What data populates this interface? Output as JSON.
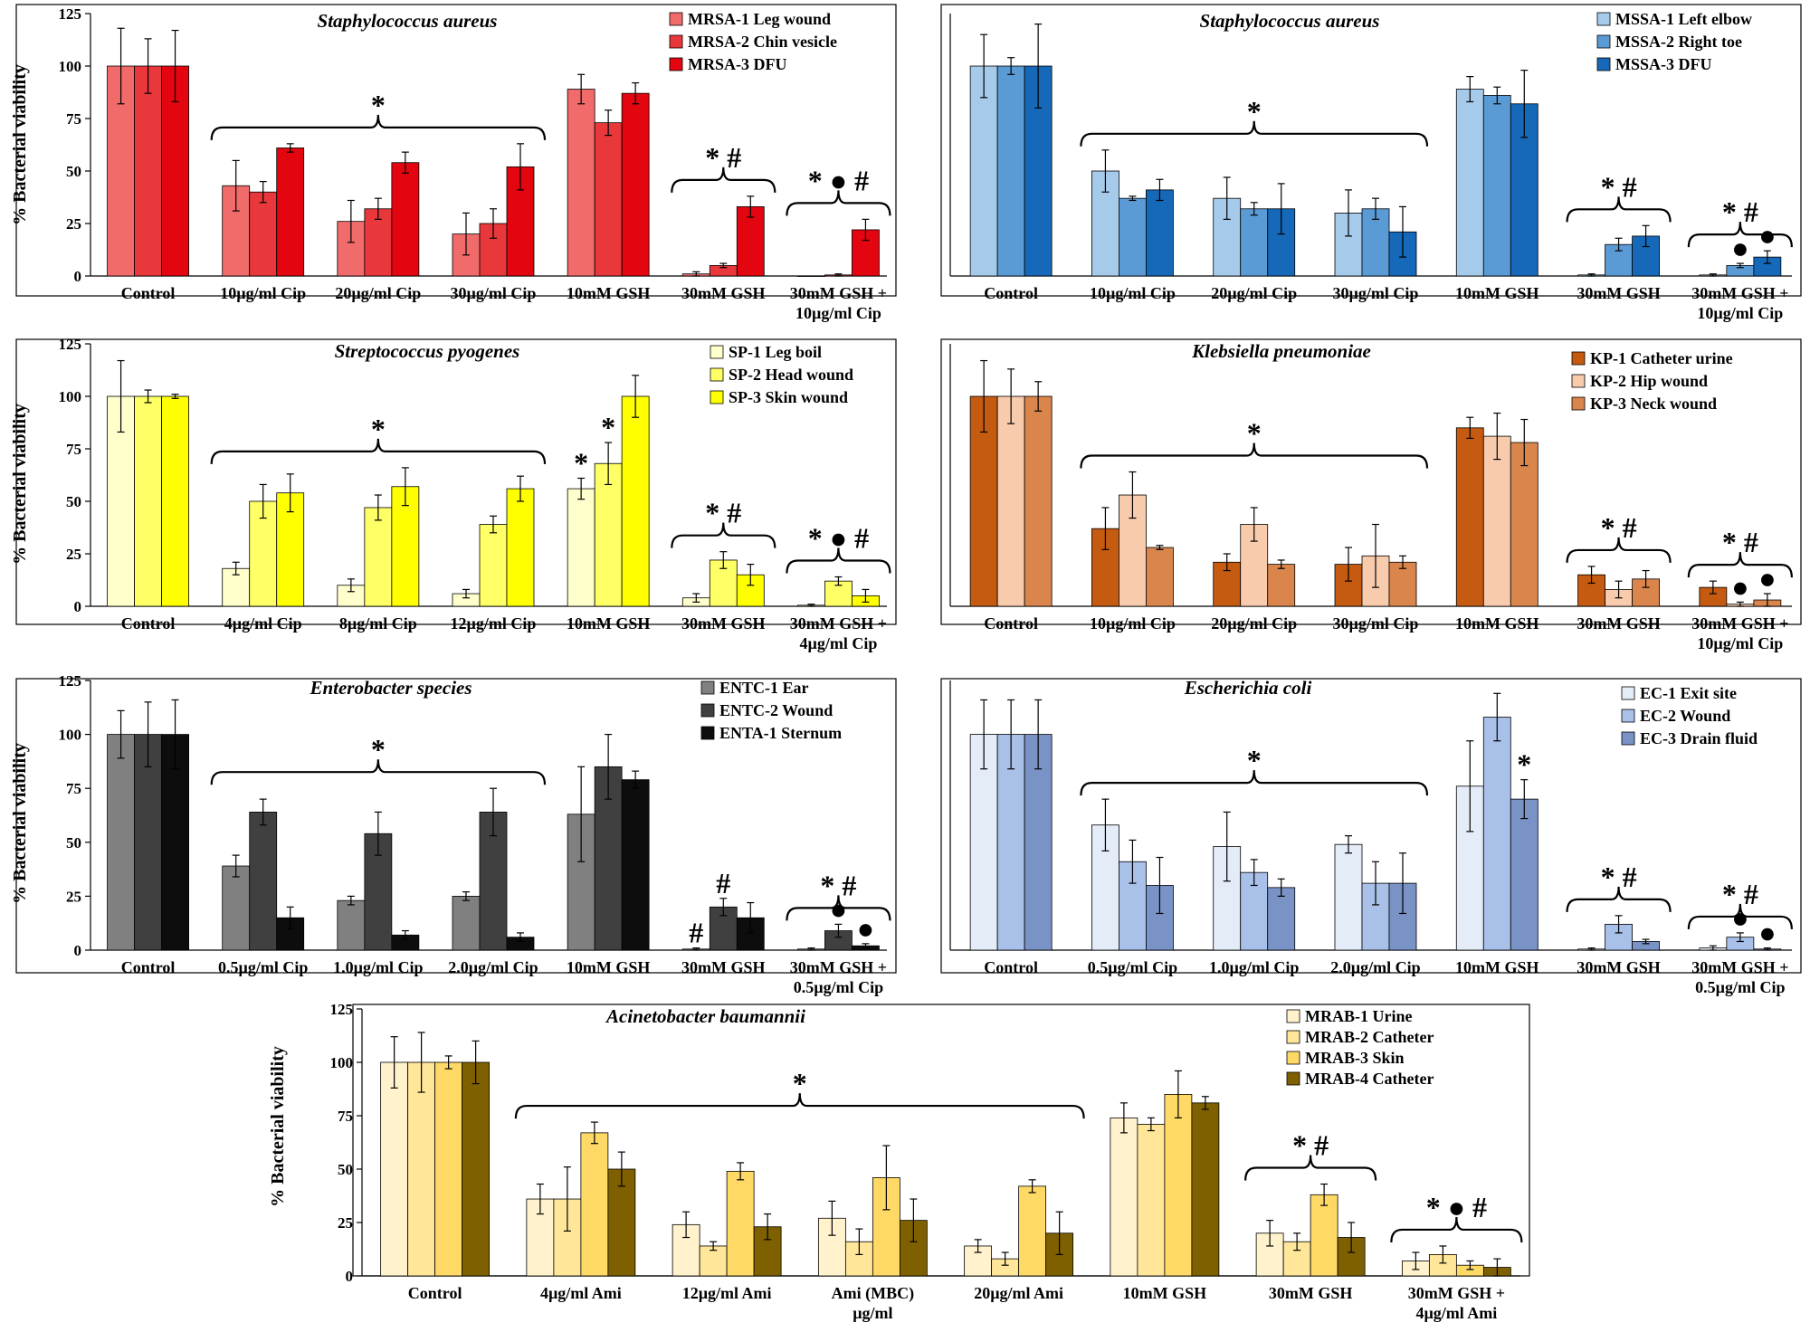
{
  "figure": {
    "ylabel": "% Bacterial viability"
  },
  "chart_data": [
    {
      "type": "bar",
      "title": "Staphylococcus aureus",
      "ylabel": "% Bacterial viability",
      "ylim": [
        0,
        125
      ],
      "yticks": [
        "0",
        "25",
        "50",
        "75",
        "100",
        "125"
      ],
      "categories": [
        [
          "Control"
        ],
        [
          "10µg/ml Cip"
        ],
        [
          "20µg/ml Cip"
        ],
        [
          "30µg/ml Cip"
        ],
        [
          "10mM GSH"
        ],
        [
          "30mM GSH"
        ],
        [
          "30mM GSH +",
          "10µg/ml Cip"
        ]
      ],
      "series": [
        {
          "name": "MRSA-1 Leg wound",
          "color": "#f26b6b",
          "values": [
            100,
            43,
            26,
            20,
            89,
            1,
            0
          ],
          "errors": [
            18,
            12,
            10,
            10,
            7,
            1,
            0
          ]
        },
        {
          "name": "MRSA-2 Chin vesicle",
          "color": "#e8383b",
          "values": [
            100,
            40,
            32,
            25,
            73,
            5,
            0.5
          ],
          "errors": [
            13,
            5,
            5,
            7,
            6,
            1,
            0.5
          ]
        },
        {
          "name": "MRSA-3 DFU",
          "color": "#e3050f",
          "values": [
            100,
            61,
            54,
            52,
            87,
            33,
            22
          ],
          "errors": [
            17,
            2,
            5,
            11,
            5,
            5,
            5
          ]
        }
      ],
      "annotations": [
        {
          "text": "*",
          "brace": [
            1,
            3
          ]
        },
        {
          "text": "*  #",
          "brace": [
            5,
            5
          ]
        },
        {
          "text": "*  ●  #",
          "brace": [
            6,
            6
          ]
        }
      ]
    },
    {
      "type": "bar",
      "title": "Staphylococcus aureus",
      "ylabel": "",
      "ylim": [
        0,
        125
      ],
      "yticks": [],
      "categories": [
        [
          "Control"
        ],
        [
          "10µg/ml Cip"
        ],
        [
          "20µg/ml Cip"
        ],
        [
          "30µg/ml Cip"
        ],
        [
          "10mM GSH"
        ],
        [
          "30mM GSH"
        ],
        [
          "30mM GSH +",
          "10µg/ml Cip"
        ]
      ],
      "series": [
        {
          "name": "MSSA-1 Left elbow",
          "color": "#a6cbea",
          "values": [
            100,
            50,
            37,
            30,
            89,
            0.5,
            0.5
          ],
          "errors": [
            15,
            10,
            10,
            11,
            6,
            0.5,
            0.5
          ]
        },
        {
          "name": "MSSA-2 Right toe",
          "color": "#5b9bd5",
          "values": [
            100,
            37,
            32,
            32,
            86,
            15,
            5
          ],
          "errors": [
            4,
            1,
            3,
            5,
            4,
            3,
            1
          ]
        },
        {
          "name": "MSSA-3 DFU",
          "color": "#1668b8",
          "values": [
            100,
            41,
            32,
            21,
            82,
            19,
            9
          ],
          "errors": [
            20,
            5,
            12,
            12,
            16,
            5,
            3
          ]
        }
      ],
      "annotations": [
        {
          "text": "*",
          "brace": [
            1,
            3
          ]
        },
        {
          "text": "*  #",
          "brace": [
            5,
            5
          ]
        },
        {
          "text": "*  #",
          "brace": [
            6,
            6
          ]
        },
        {
          "text": "●",
          "at": [
            6,
            1
          ]
        },
        {
          "text": "●",
          "at": [
            6,
            2
          ]
        }
      ]
    },
    {
      "type": "bar",
      "title": "Streptococcus pyogenes",
      "ylabel": "% Bacterial viability",
      "ylim": [
        0,
        125
      ],
      "yticks": [
        "0",
        "25",
        "50",
        "75",
        "100",
        "125"
      ],
      "categories": [
        [
          "Control"
        ],
        [
          "4µg/ml Cip"
        ],
        [
          "8µg/ml Cip"
        ],
        [
          "12µg/ml Cip"
        ],
        [
          "10mM GSH"
        ],
        [
          "30mM GSH"
        ],
        [
          "30mM GSH +",
          "4µg/ml Cip"
        ]
      ],
      "series": [
        {
          "name": "SP-1 Leg boil",
          "color": "#ffffcc",
          "values": [
            100,
            18,
            10,
            6,
            56,
            4,
            0.5
          ],
          "errors": [
            17,
            3,
            3,
            2,
            5,
            2,
            0.5
          ]
        },
        {
          "name": "SP-2 Head wound",
          "color": "#ffff66",
          "values": [
            100,
            50,
            47,
            39,
            68,
            22,
            12
          ],
          "errors": [
            3,
            8,
            6,
            4,
            10,
            4,
            2
          ]
        },
        {
          "name": "SP-3 Skin wound",
          "color": "#ffff00",
          "values": [
            100,
            54,
            57,
            56,
            100,
            15,
            5
          ],
          "errors": [
            1,
            9,
            9,
            6,
            10,
            5,
            3
          ]
        }
      ],
      "annotations": [
        {
          "text": "*",
          "brace": [
            1,
            3
          ]
        },
        {
          "text": "*",
          "at": [
            4,
            0
          ]
        },
        {
          "text": "*",
          "at": [
            4,
            1
          ]
        },
        {
          "text": "*  #",
          "brace": [
            5,
            5
          ]
        },
        {
          "text": "*  ●  #",
          "brace": [
            6,
            6
          ]
        }
      ]
    },
    {
      "type": "bar",
      "title": "Klebsiella pneumoniae",
      "ylabel": "",
      "ylim": [
        0,
        125
      ],
      "yticks": [],
      "categories": [
        [
          "Control"
        ],
        [
          "10µg/ml Cip"
        ],
        [
          "20µg/ml Cip"
        ],
        [
          "30µg/ml Cip"
        ],
        [
          "10mM GSH"
        ],
        [
          "30mM GSH"
        ],
        [
          "30mM GSH +",
          "10µg/ml Cip"
        ]
      ],
      "series": [
        {
          "name": "KP-1 Catheter urine",
          "color": "#c55a11",
          "values": [
            100,
            37,
            21,
            20,
            85,
            15,
            9
          ],
          "errors": [
            17,
            10,
            4,
            8,
            5,
            4,
            3
          ]
        },
        {
          "name": "KP-2 Hip wound",
          "color": "#f8cbad",
          "values": [
            100,
            53,
            39,
            24,
            81,
            8,
            1
          ],
          "errors": [
            13,
            11,
            8,
            15,
            11,
            4,
            1
          ]
        },
        {
          "name": "KP-3 Neck wound",
          "color": "#d9854c",
          "values": [
            100,
            28,
            20,
            21,
            78,
            13,
            3
          ],
          "errors": [
            7,
            1,
            2,
            3,
            11,
            4,
            3
          ]
        }
      ],
      "annotations": [
        {
          "text": "*",
          "brace": [
            1,
            3
          ]
        },
        {
          "text": "*  #",
          "brace": [
            5,
            5
          ]
        },
        {
          "text": "*  #",
          "brace": [
            6,
            6
          ]
        },
        {
          "text": "●",
          "at": [
            6,
            1
          ]
        },
        {
          "text": "●",
          "at": [
            6,
            2
          ]
        }
      ]
    },
    {
      "type": "bar",
      "title": "Enterobacter species",
      "ylabel": "% Bacterial viability",
      "ylim": [
        0,
        125
      ],
      "yticks": [
        "0",
        "25",
        "50",
        "75",
        "100",
        "125"
      ],
      "categories": [
        [
          "Control"
        ],
        [
          "0.5µg/ml Cip"
        ],
        [
          "1.0µg/ml Cip"
        ],
        [
          "2.0µg/ml Cip"
        ],
        [
          "10mM GSH"
        ],
        [
          "30mM GSH"
        ],
        [
          "30mM GSH +",
          "0.5µg/ml Cip"
        ]
      ],
      "series": [
        {
          "name": "ENTC-1 Ear",
          "color": "#808080",
          "values": [
            100,
            39,
            23,
            25,
            63,
            0.5,
            0.5
          ],
          "errors": [
            11,
            5,
            2,
            2,
            22,
            0.5,
            0.5
          ]
        },
        {
          "name": "ENTC-2 Wound",
          "color": "#404040",
          "values": [
            100,
            64,
            54,
            64,
            85,
            20,
            9
          ],
          "errors": [
            15,
            6,
            10,
            11,
            15,
            4,
            3
          ]
        },
        {
          "name": "ENTA-1 Sternum",
          "color": "#0d0d0d",
          "values": [
            100,
            15,
            7,
            6,
            79,
            15,
            2
          ],
          "errors": [
            16,
            5,
            2,
            2,
            4,
            7,
            1
          ]
        }
      ],
      "annotations": [
        {
          "text": "*",
          "brace": [
            1,
            3
          ]
        },
        {
          "text": "#",
          "at": [
            5,
            0
          ]
        },
        {
          "text": "#",
          "at": [
            5,
            1
          ]
        },
        {
          "text": "*  #",
          "brace": [
            6,
            6
          ]
        },
        {
          "text": "●",
          "at": [
            6,
            1
          ]
        },
        {
          "text": "●",
          "at": [
            6,
            2
          ]
        }
      ]
    },
    {
      "type": "bar",
      "title": "Escherichia coli",
      "ylabel": "",
      "ylim": [
        0,
        125
      ],
      "yticks": [],
      "categories": [
        [
          "Control"
        ],
        [
          "0.5µg/ml Cip"
        ],
        [
          "1.0µg/ml Cip"
        ],
        [
          "2.0µg/ml Cip"
        ],
        [
          "10mM GSH"
        ],
        [
          "30mM GSH"
        ],
        [
          "30mM GSH +",
          "0.5µg/ml Cip"
        ]
      ],
      "series": [
        {
          "name": "EC-1 Exit site",
          "color": "#e3ecf7",
          "values": [
            100,
            58,
            48,
            49,
            76,
            0.5,
            1
          ],
          "errors": [
            16,
            12,
            16,
            4,
            21,
            0.5,
            1
          ]
        },
        {
          "name": "EC-2 Wound",
          "color": "#a9c0e8",
          "values": [
            100,
            41,
            36,
            31,
            108,
            12,
            6
          ],
          "errors": [
            16,
            10,
            6,
            10,
            11,
            4,
            2
          ]
        },
        {
          "name": "EC-3 Drain fluid",
          "color": "#7993c6",
          "values": [
            100,
            30,
            29,
            31,
            70,
            4,
            0.5
          ],
          "errors": [
            16,
            13,
            4,
            14,
            9,
            1,
            0.5
          ]
        }
      ],
      "annotations": [
        {
          "text": "*",
          "brace": [
            1,
            3
          ]
        },
        {
          "text": "*",
          "at": [
            4,
            2
          ]
        },
        {
          "text": "*  #",
          "brace": [
            5,
            5
          ]
        },
        {
          "text": "*  #",
          "brace": [
            6,
            6
          ]
        },
        {
          "text": "●",
          "at": [
            6,
            1
          ]
        },
        {
          "text": "●",
          "at": [
            6,
            2
          ]
        }
      ]
    },
    {
      "type": "bar",
      "title": "Acinetobacter baumannii",
      "ylabel": "% Bacterial viability",
      "ylim": [
        0,
        125
      ],
      "yticks": [
        "0",
        "25",
        "50",
        "75",
        "100",
        "125"
      ],
      "categories": [
        [
          "Control"
        ],
        [
          "4µg/ml Ami"
        ],
        [
          "12µg/ml Ami"
        ],
        [
          "Ami (MBC)",
          "µg/ml"
        ],
        [
          "20µg/ml Ami"
        ],
        [
          "10mM GSH"
        ],
        [
          "30mM GSH"
        ],
        [
          "30mM GSH +",
          "4µg/ml Ami"
        ]
      ],
      "series": [
        {
          "name": "MRAB-1 Urine",
          "color": "#fff2cc",
          "values": [
            100,
            36,
            24,
            27,
            14,
            74,
            20,
            7
          ],
          "errors": [
            12,
            7,
            6,
            8,
            3,
            7,
            6,
            4
          ]
        },
        {
          "name": "MRAB-2 Catheter",
          "color": "#ffe699",
          "values": [
            100,
            36,
            14,
            16,
            8,
            71,
            16,
            10
          ],
          "errors": [
            14,
            15,
            2,
            6,
            3,
            3,
            4,
            4
          ]
        },
        {
          "name": "MRAB-3 Skin",
          "color": "#ffd966",
          "values": [
            100,
            67,
            49,
            46,
            42,
            85,
            38,
            5
          ],
          "errors": [
            3,
            5,
            4,
            15,
            3,
            11,
            5,
            2
          ]
        },
        {
          "name": "MRAB-4 Catheter",
          "color": "#7f6000",
          "values": [
            100,
            50,
            23,
            26,
            20,
            81,
            18,
            4
          ],
          "errors": [
            10,
            8,
            6,
            10,
            10,
            3,
            7,
            4
          ]
        }
      ],
      "annotations": [
        {
          "text": "*",
          "brace": [
            1,
            4
          ]
        },
        {
          "text": "*  #",
          "brace": [
            6,
            6
          ]
        },
        {
          "text": "*  ●  #",
          "brace": [
            7,
            7
          ]
        }
      ]
    }
  ]
}
